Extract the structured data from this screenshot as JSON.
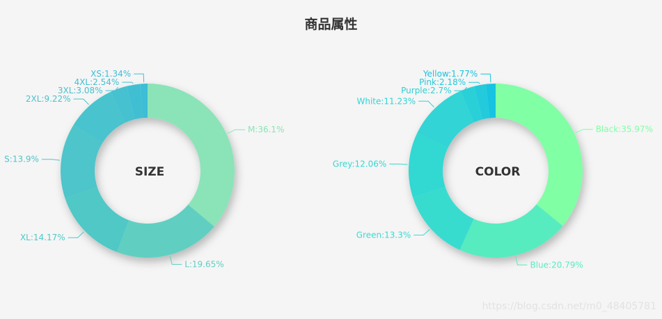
{
  "title": "商品属性",
  "watermark": "https://blog.csdn.net/m0_48405781",
  "chart_data": [
    {
      "type": "pie",
      "center_text": "SIZE",
      "slices": [
        {
          "name": "M",
          "value": 36.1,
          "label": "M:36.1%",
          "color": "#8ae4b8"
        },
        {
          "name": "L",
          "value": 19.65,
          "label": "L:19.65%",
          "color": "#60cfc1"
        },
        {
          "name": "XL",
          "value": 14.17,
          "label": "XL:14.17%",
          "color": "#50c8c6"
        },
        {
          "name": "S",
          "value": 13.9,
          "label": "S:13.9%",
          "color": "#4ec5ca"
        },
        {
          "name": "2XL",
          "value": 9.22,
          "label": "2XL:9.22%",
          "color": "#48c3cd"
        },
        {
          "name": "3XL",
          "value": 3.08,
          "label": "3XL:3.08%",
          "color": "#44c1d0"
        },
        {
          "name": "4XL",
          "value": 2.54,
          "label": "4XL:2.54%",
          "color": "#41bfd3"
        },
        {
          "name": "XS",
          "value": 1.34,
          "label": "XS:1.34%",
          "color": "#3dbdd6"
        }
      ]
    },
    {
      "type": "pie",
      "center_text": "COLOR",
      "slices": [
        {
          "name": "Black",
          "value": 35.97,
          "label": "Black:35.97%",
          "color": "#80ffa5"
        },
        {
          "name": "Blue",
          "value": 20.79,
          "label": "Blue:20.79%",
          "color": "#57ecc0"
        },
        {
          "name": "Green",
          "value": 13.3,
          "label": "Green:13.3%",
          "color": "#37dccf"
        },
        {
          "name": "Grey",
          "value": 12.06,
          "label": "Grey:12.06%",
          "color": "#33d8d2"
        },
        {
          "name": "White",
          "value": 11.23,
          "label": "White:11.23%",
          "color": "#30d4d5"
        },
        {
          "name": "Purple",
          "value": 2.7,
          "label": "Purple:2.7%",
          "color": "#2bd0d8"
        },
        {
          "name": "Pink",
          "value": 2.18,
          "label": "Pink:2.18%",
          "color": "#20cadc"
        },
        {
          "name": "Yellow",
          "value": 1.77,
          "label": "Yellow:1.77%",
          "color": "#15c3e0"
        }
      ]
    }
  ]
}
